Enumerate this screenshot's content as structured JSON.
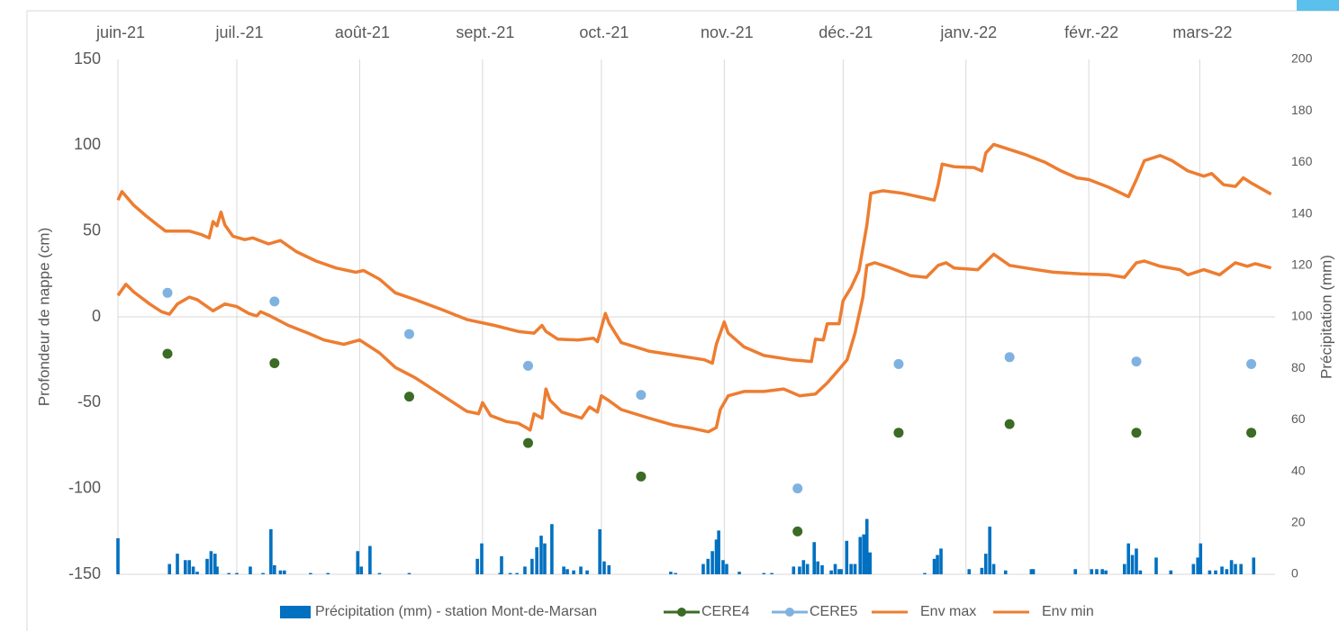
{
  "chart_data": {
    "type": "combo",
    "xlabel_ticks_position": "top",
    "ylabel": "Profondeur de nappe (cm)",
    "y2label": "Précipitation (mm)",
    "xlim": [
      0,
      292
    ],
    "xticks": [
      {
        "value": 0,
        "label": "juin-21"
      },
      {
        "value": 30,
        "label": "juil.-21"
      },
      {
        "value": 61,
        "label": "août-21"
      },
      {
        "value": 92,
        "label": "sept.-21"
      },
      {
        "value": 122,
        "label": "oct.-21"
      },
      {
        "value": 153,
        "label": "nov.-21"
      },
      {
        "value": 183,
        "label": "déc.-21"
      },
      {
        "value": 214,
        "label": "janv.-22"
      },
      {
        "value": 245,
        "label": "févr.-22"
      },
      {
        "value": 273,
        "label": "mars-22"
      }
    ],
    "ylim": [
      -150,
      150
    ],
    "yticks": [
      -150,
      -100,
      -50,
      0,
      50,
      100,
      150
    ],
    "y2lim": [
      0,
      200
    ],
    "y2ticks": [
      0,
      20,
      40,
      60,
      80,
      100,
      120,
      140,
      160,
      180,
      200
    ],
    "grid": "x",
    "legend": "bottom",
    "series": [
      {
        "name": "Précipitation (mm) - station Mont-de-Marsan",
        "type": "bar",
        "axis": "y2",
        "color": "#0070c0",
        "x": [
          0,
          13,
          15,
          17,
          18,
          19,
          20,
          22.5,
          23.5,
          24.5,
          25,
          28,
          30,
          33.4,
          36.6,
          38.6,
          39.5,
          41,
          42,
          48.6,
          53,
          60.5,
          61.4,
          63.6,
          66,
          73.5,
          90.7,
          91.8,
          96.4,
          96.8,
          99,
          100.7,
          102.7,
          104.5,
          105.7,
          106.8,
          107.7,
          109.5,
          112.5,
          113.4,
          115,
          116.8,
          118.4,
          121.6,
          122.7,
          123.9,
          139.5,
          140.7,
          147.7,
          148.9,
          150,
          151,
          151.6,
          152.7,
          153.6,
          156.8,
          163,
          165,
          170.5,
          172,
          173,
          174,
          175.7,
          176.6,
          177.7,
          180,
          181,
          182,
          182.5,
          183.9,
          185,
          186,
          187.3,
          188.2,
          189,
          189.8,
          203.6,
          206,
          206.8,
          207.7,
          214.8,
          218,
          219,
          220,
          221,
          224,
          230.5,
          231,
          241.6,
          245.7,
          247,
          248.4,
          249.3,
          254,
          255,
          256,
          257,
          258,
          262,
          265.7,
          271.4,
          272.5,
          273.2,
          275.5,
          277,
          278.6,
          279.8,
          281,
          282,
          283.4,
          286.6
        ],
        "values": [
          14,
          4,
          8,
          5.5,
          5.5,
          3,
          1,
          6,
          9,
          8,
          3,
          0.5,
          0.5,
          3,
          0.5,
          17.5,
          3.5,
          1.5,
          1.5,
          0.5,
          0.5,
          9,
          3,
          11,
          0.5,
          0.5,
          6,
          12,
          0.5,
          7,
          0.5,
          0.5,
          3,
          6,
          10.5,
          15,
          12,
          19.5,
          3,
          2,
          1.5,
          3,
          1.5,
          17.5,
          5,
          3.5,
          1,
          0.5,
          4,
          6,
          9,
          13.5,
          17,
          5.5,
          4,
          1,
          0.5,
          0.5,
          3,
          3,
          5.5,
          4,
          12.5,
          5,
          3.5,
          1.5,
          4,
          2,
          2,
          13,
          4,
          4,
          14.5,
          15.5,
          21.5,
          8.5,
          0.5,
          6,
          7.5,
          10,
          2,
          2.5,
          8,
          18.5,
          4,
          1.5,
          2,
          2,
          2,
          2,
          2,
          2,
          1.5,
          4,
          12,
          7.5,
          10,
          1.5,
          6.5,
          1.5,
          4,
          6.5,
          12,
          1.5,
          1.5,
          3,
          2,
          5.5,
          4,
          4,
          6.5
        ]
      },
      {
        "name": "CERE4",
        "type": "scatter",
        "color": "#3b6b24",
        "x": [
          12.5,
          39.5,
          73.5,
          103.5,
          132,
          171.5,
          197,
          225,
          257,
          286
        ],
        "values": [
          -21.5,
          -27,
          -46.5,
          -73.5,
          -93,
          -125,
          -67.5,
          -62.5,
          -67.5,
          -67.5
        ]
      },
      {
        "name": "CERE5",
        "type": "scatter",
        "color": "#7fb2e0",
        "x": [
          12.5,
          39.5,
          73.5,
          103.5,
          132,
          171.5,
          197,
          225,
          257,
          286
        ],
        "values": [
          14,
          9,
          -10,
          -28.5,
          -45.5,
          -100,
          -27.5,
          -23.5,
          -26,
          -27.5
        ]
      },
      {
        "name": "Env max",
        "type": "line",
        "color": "#ed7d31",
        "x": [
          0,
          1,
          4,
          7,
          10,
          12,
          18,
          21,
          23,
          24,
          25,
          26,
          27,
          29,
          32,
          34,
          38,
          41,
          45,
          50,
          55,
          60,
          62,
          66,
          70,
          75,
          82,
          88,
          95,
          101,
          105,
          107,
          108,
          111,
          116,
          120,
          121,
          123,
          124,
          127,
          134,
          141,
          148,
          150,
          151,
          153,
          154,
          158,
          163,
          170,
          175,
          176,
          178,
          179,
          182,
          183,
          185,
          187,
          189,
          190,
          193,
          198,
          202,
          206,
          207,
          208,
          211,
          216,
          218,
          219,
          221,
          225,
          229,
          234,
          238,
          242,
          245,
          250,
          255,
          257,
          259,
          263,
          266,
          270,
          274,
          276,
          279,
          282,
          284,
          286,
          291
        ],
        "values": [
          68,
          73,
          65,
          59,
          53.5,
          50,
          50,
          48,
          46,
          55.5,
          53,
          61,
          53.5,
          47,
          45,
          46,
          42.5,
          44.5,
          38,
          32.5,
          28.5,
          26,
          27,
          22,
          14,
          10,
          4,
          -1.5,
          -5,
          -8.5,
          -9.5,
          -5,
          -8.5,
          -13,
          -13.5,
          -12.5,
          -14.5,
          2,
          -4,
          -15,
          -20,
          -22.5,
          -25,
          -27,
          -16,
          -3,
          -9.5,
          -17.5,
          -22.5,
          -25,
          -26,
          -13,
          -13.5,
          -4,
          -4,
          9.5,
          17,
          27,
          53.5,
          72,
          73.5,
          72,
          70,
          68,
          77,
          89,
          87.5,
          87,
          85,
          95.5,
          100.5,
          97.5,
          94.5,
          90,
          85,
          81,
          80,
          75.5,
          70,
          80,
          91,
          94,
          91,
          85,
          82,
          83.5,
          77,
          76,
          81,
          78,
          71.5
        ]
      },
      {
        "name": "Env min",
        "type": "line",
        "color": "#ed7d31",
        "x": [
          0,
          2,
          4,
          8,
          11,
          13,
          15,
          18,
          20,
          24,
          27,
          30,
          33,
          35,
          36,
          38,
          43,
          48,
          52,
          57,
          61,
          66,
          70,
          75,
          82,
          88,
          91,
          92,
          94,
          98,
          101,
          103,
          104,
          105,
          107,
          108,
          109,
          112,
          117,
          119,
          121,
          122,
          124,
          127,
          134,
          140,
          145,
          149,
          151,
          152,
          154,
          158,
          163,
          168,
          172,
          176,
          179,
          182,
          184,
          186,
          188,
          189,
          191,
          195,
          200,
          204,
          207,
          209,
          211,
          217,
          221,
          225,
          229,
          236,
          243,
          250,
          254,
          257,
          259,
          263,
          268,
          270,
          274,
          278,
          282,
          285,
          287,
          291
        ],
        "values": [
          12.5,
          19,
          14.5,
          7.5,
          3,
          1.5,
          7.5,
          11.5,
          10,
          3.5,
          7.5,
          6,
          2,
          0.5,
          3,
          1,
          -5,
          -9.5,
          -13.5,
          -16,
          -13.5,
          -21,
          -29.5,
          -35.5,
          -46,
          -55,
          -56.5,
          -50,
          -57.5,
          -61,
          -62,
          -64.5,
          -66,
          -56.5,
          -59,
          -42,
          -48.5,
          -55.5,
          -59,
          -52.5,
          -55.5,
          -46,
          -49,
          -54,
          -59,
          -63,
          -65,
          -67,
          -64.5,
          -54,
          -46,
          -43.5,
          -43.5,
          -42,
          -46,
          -45,
          -38.5,
          -30.5,
          -25,
          -9.5,
          11.5,
          30,
          31.5,
          28.5,
          24,
          23,
          30,
          31.5,
          28.5,
          27.5,
          36.5,
          30,
          28.5,
          26,
          25,
          24.5,
          23,
          31.5,
          32.5,
          29.5,
          27.5,
          24.5,
          27.5,
          24.5,
          31.5,
          29.5,
          31,
          28.5
        ]
      }
    ]
  }
}
